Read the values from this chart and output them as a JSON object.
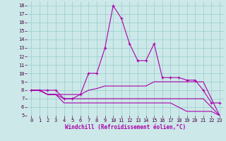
{
  "xlabel": "Windchill (Refroidissement éolien,°C)",
  "background_color": "#cce8e8",
  "line_color": "#aa00aa",
  "grid_color": "#99cccc",
  "xlim": [
    -0.5,
    23.5
  ],
  "ylim": [
    5,
    18.5
  ],
  "yticks": [
    5,
    6,
    7,
    8,
    9,
    10,
    11,
    12,
    13,
    14,
    15,
    16,
    17,
    18
  ],
  "xticks": [
    0,
    1,
    2,
    3,
    4,
    5,
    6,
    7,
    8,
    9,
    10,
    11,
    12,
    13,
    14,
    15,
    16,
    17,
    18,
    19,
    20,
    21,
    22,
    23
  ],
  "lines": [
    {
      "x": [
        0,
        1,
        2,
        3,
        4,
        5,
        6,
        7,
        8,
        9,
        10,
        11,
        12,
        13,
        14,
        15,
        16,
        17,
        18,
        19,
        20,
        21,
        22,
        23
      ],
      "y": [
        8,
        8,
        8,
        8,
        7,
        7,
        7.5,
        10,
        10,
        13,
        18,
        16.5,
        13.5,
        11.5,
        11.5,
        13.5,
        9.5,
        9.5,
        9.5,
        9.2,
        9.2,
        8,
        6.5,
        6.5
      ],
      "marker": "+",
      "linewidth": 0.8,
      "markersize": 3
    },
    {
      "x": [
        0,
        1,
        2,
        3,
        4,
        5,
        6,
        7,
        8,
        9,
        10,
        11,
        12,
        13,
        14,
        15,
        16,
        17,
        18,
        19,
        20,
        21,
        22,
        23
      ],
      "y": [
        8,
        8,
        7.5,
        7.5,
        7.5,
        7.5,
        7.5,
        8.0,
        8.2,
        8.5,
        8.5,
        8.5,
        8.5,
        8.5,
        8.5,
        9.0,
        9.0,
        9.0,
        9.0,
        9.0,
        9.0,
        9.0,
        7.0,
        5.0
      ],
      "marker": null,
      "linewidth": 0.8,
      "markersize": 0
    },
    {
      "x": [
        0,
        1,
        2,
        3,
        4,
        5,
        6,
        7,
        8,
        9,
        10,
        11,
        12,
        13,
        14,
        15,
        16,
        17,
        18,
        19,
        20,
        21,
        22,
        23
      ],
      "y": [
        8,
        8,
        7.5,
        7.5,
        7.0,
        7.0,
        7.0,
        7.0,
        7.0,
        7.0,
        7.0,
        7.0,
        7.0,
        7.0,
        7.0,
        7.0,
        7.0,
        7.0,
        7.0,
        7.0,
        7.0,
        7.0,
        6.0,
        5.0
      ],
      "marker": null,
      "linewidth": 0.8,
      "markersize": 0
    },
    {
      "x": [
        0,
        1,
        2,
        3,
        4,
        5,
        6,
        7,
        8,
        9,
        10,
        11,
        12,
        13,
        14,
        15,
        16,
        17,
        18,
        19,
        20,
        21,
        22,
        23
      ],
      "y": [
        8,
        8,
        7.5,
        7.5,
        6.5,
        6.5,
        6.5,
        6.5,
        6.5,
        6.5,
        6.5,
        6.5,
        6.5,
        6.5,
        6.5,
        6.5,
        6.5,
        6.5,
        6.0,
        5.5,
        5.5,
        5.5,
        5.5,
        5.0
      ],
      "marker": null,
      "linewidth": 0.8,
      "markersize": 0
    }
  ],
  "tick_labelsize": 5,
  "xlabel_fontsize": 5.5
}
